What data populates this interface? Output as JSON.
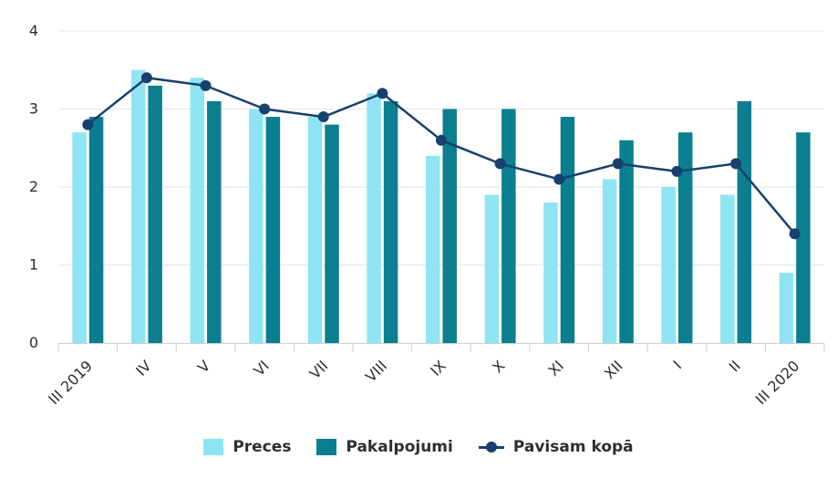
{
  "chart_data": {
    "type": "bar",
    "categories": [
      "III 2019",
      "IV",
      "V",
      "VI",
      "VII",
      "VIII",
      "IX",
      "X",
      "XI",
      "XII",
      "I",
      "II",
      "III 2020"
    ],
    "series": [
      {
        "name": "Preces",
        "kind": "bar",
        "color": "#8fe4f4",
        "values": [
          2.7,
          3.5,
          3.4,
          3.0,
          2.9,
          3.2,
          2.4,
          1.9,
          1.8,
          2.1,
          2.0,
          1.9,
          0.9
        ]
      },
      {
        "name": "Pakalpojumi",
        "kind": "bar",
        "color": "#0b7f8f",
        "values": [
          2.9,
          3.3,
          3.1,
          2.9,
          2.8,
          3.1,
          3.0,
          3.0,
          2.9,
          2.6,
          2.7,
          3.1,
          2.7
        ]
      },
      {
        "name": "Pavisam kopā",
        "kind": "line",
        "color": "#17406d",
        "values": [
          2.8,
          3.4,
          3.3,
          3.0,
          2.9,
          3.2,
          2.6,
          2.3,
          2.1,
          2.3,
          2.2,
          2.3,
          1.4
        ]
      }
    ],
    "yticks": [
      "0",
      "1",
      "2",
      "3",
      "4"
    ],
    "ylim": [
      0,
      4
    ],
    "grid": true,
    "legend_position": "bottom-center"
  },
  "colors": {
    "grid": "#e6e6e6",
    "axis": "#cfcfcf",
    "text": "#2d2d2d"
  }
}
